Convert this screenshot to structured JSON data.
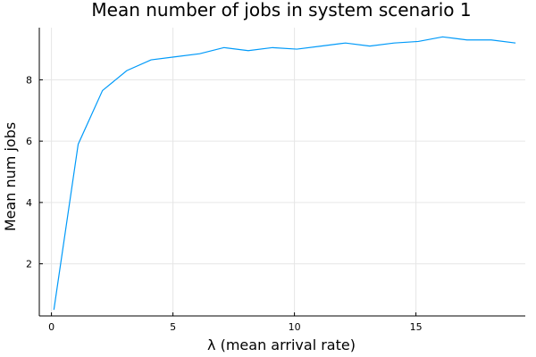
{
  "chart_data": {
    "type": "line",
    "title": "Mean number of jobs in system scenario 1",
    "xlabel": "λ (mean arrival rate)",
    "ylabel": "Mean num jobs",
    "xlim": [
      -0.5,
      19.5
    ],
    "ylim": [
      0.3,
      9.7
    ],
    "xticks": [
      0,
      5,
      10,
      15
    ],
    "yticks": [
      2,
      4,
      6,
      8
    ],
    "grid": true,
    "legend": "none",
    "series": [
      {
        "color": "#009af9",
        "x": [
          0.1,
          1.1,
          2.1,
          3.1,
          4.1,
          5.1,
          6.1,
          7.1,
          8.1,
          9.1,
          10.1,
          11.1,
          12.1,
          13.1,
          14.1,
          15.1,
          16.1,
          17.1,
          18.1,
          19.1
        ],
        "y": [
          0.5,
          5.9,
          7.65,
          8.3,
          8.65,
          8.75,
          8.85,
          9.05,
          8.95,
          9.05,
          9.0,
          9.1,
          9.2,
          9.1,
          9.2,
          9.25,
          9.4,
          9.3,
          9.3,
          9.2
        ]
      }
    ]
  }
}
